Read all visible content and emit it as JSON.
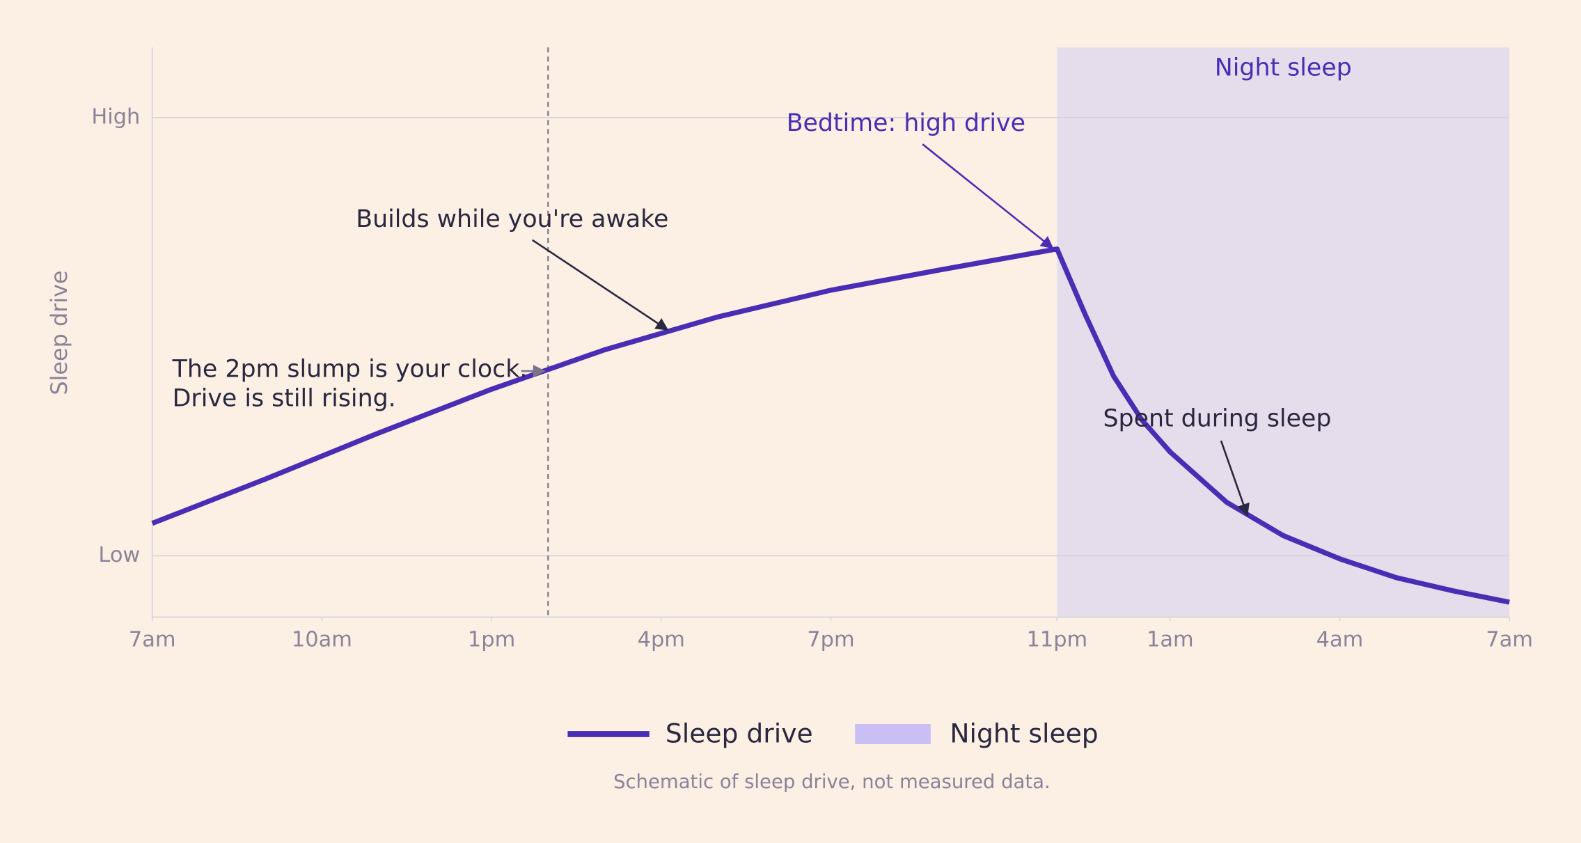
{
  "chart_data": {
    "type": "line",
    "y_label": "Sleep drive",
    "x": [
      0,
      2,
      4,
      6,
      8,
      10,
      12,
      14,
      16,
      16.5,
      17,
      17.5,
      18,
      19,
      20,
      21,
      22,
      23,
      24
    ],
    "series": [
      {
        "name": "Sleep drive",
        "color": "#4a2db5",
        "values": [
          0.074,
          0.175,
          0.28,
          0.38,
          0.47,
          0.545,
          0.606,
          0.654,
          0.7,
          0.55,
          0.41,
          0.31,
          0.237,
          0.122,
          0.046,
          -0.007,
          -0.05,
          -0.08,
          -0.106
        ]
      }
    ],
    "band": {
      "start": 16,
      "end": 24,
      "label": "Night sleep",
      "color": "#e6ddec",
      "legend_color": "#c9bff5"
    },
    "vline": 7,
    "xlim": [
      0,
      24
    ],
    "xticks": [
      {
        "value": 0,
        "label": "7am"
      },
      {
        "value": 3,
        "label": "10am"
      },
      {
        "value": 6,
        "label": "1pm"
      },
      {
        "value": 9,
        "label": "4pm"
      },
      {
        "value": 12,
        "label": "7pm"
      },
      {
        "value": 16,
        "label": "11pm"
      },
      {
        "value": 18,
        "label": "1am"
      },
      {
        "value": 21,
        "label": "4am"
      },
      {
        "value": 24,
        "label": "7am"
      }
    ],
    "ylim": [
      -0.14,
      1.16
    ],
    "yticks": [
      {
        "value": 0,
        "label": "Low"
      },
      {
        "value": 1,
        "label": "High"
      }
    ],
    "grid": true,
    "annotations": [
      {
        "lines": [
          "Builds while you're awake"
        ]
      },
      {
        "lines": [
          "The 2pm slump is your clock.",
          "Drive is still rising."
        ]
      },
      {
        "lines": [
          "Bedtime: high drive"
        ]
      },
      {
        "lines": [
          "Spent during sleep"
        ]
      }
    ],
    "footnote": "Schematic of sleep drive, not measured data."
  }
}
